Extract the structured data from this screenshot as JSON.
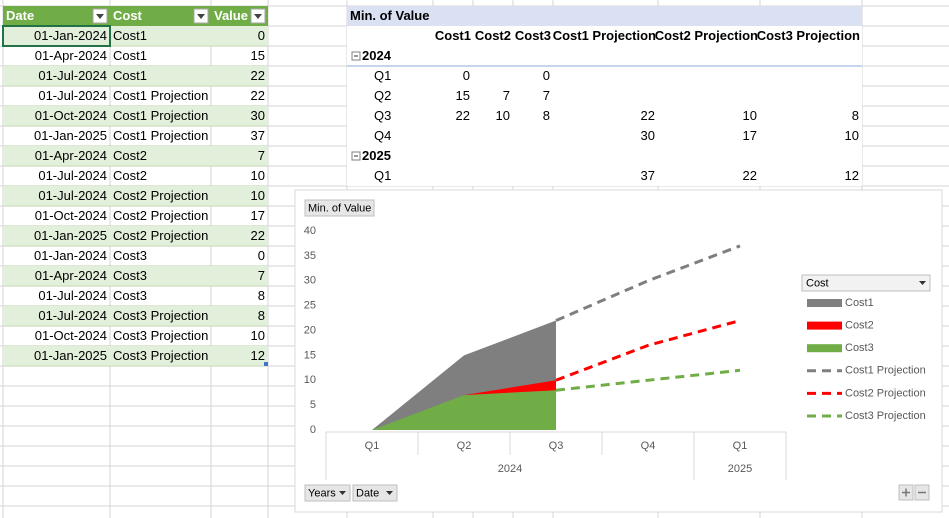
{
  "table": {
    "header": [
      "Date",
      "Cost",
      "Value"
    ],
    "rows": [
      [
        "01-Jan-2024",
        "Cost1",
        0
      ],
      [
        "01-Apr-2024",
        "Cost1",
        15
      ],
      [
        "01-Jul-2024",
        "Cost1",
        22
      ],
      [
        "01-Jul-2024",
        "Cost1 Projection",
        22
      ],
      [
        "01-Oct-2024",
        "Cost1 Projection",
        30
      ],
      [
        "01-Jan-2025",
        "Cost1 Projection",
        37
      ],
      [
        "01-Apr-2024",
        "Cost2",
        7
      ],
      [
        "01-Jul-2024",
        "Cost2",
        10
      ],
      [
        "01-Jul-2024",
        "Cost2 Projection",
        10
      ],
      [
        "01-Oct-2024",
        "Cost2 Projection",
        17
      ],
      [
        "01-Jan-2025",
        "Cost2 Projection",
        22
      ],
      [
        "01-Jan-2024",
        "Cost3",
        0
      ],
      [
        "01-Apr-2024",
        "Cost3",
        7
      ],
      [
        "01-Jul-2024",
        "Cost3",
        8
      ],
      [
        "01-Jul-2024",
        "Cost3 Projection",
        8
      ],
      [
        "01-Oct-2024",
        "Cost3 Projection",
        10
      ],
      [
        "01-Jan-2025",
        "Cost3 Projection",
        12
      ]
    ]
  },
  "pivot": {
    "title": "Min. of Value",
    "columns": [
      "Cost1",
      "Cost2",
      "Cost3",
      "Cost1 Projection",
      "Cost2 Projection",
      "Cost3 Projection"
    ],
    "groups": [
      {
        "year": "2024",
        "rows": [
          {
            "label": "Q1",
            "values": [
              0,
              null,
              0,
              null,
              null,
              null
            ]
          },
          {
            "label": "Q2",
            "values": [
              15,
              7,
              7,
              null,
              null,
              null
            ]
          },
          {
            "label": "Q3",
            "values": [
              22,
              10,
              8,
              22,
              10,
              8
            ]
          },
          {
            "label": "Q4",
            "values": [
              null,
              null,
              null,
              30,
              17,
              10
            ]
          }
        ]
      },
      {
        "year": "2025",
        "rows": [
          {
            "label": "Q1",
            "values": [
              null,
              null,
              null,
              37,
              22,
              12
            ]
          }
        ]
      }
    ]
  },
  "chart": {
    "type": "area-line",
    "value_field": "Min. of Value",
    "groups": [
      {
        "name": "2024",
        "categories": [
          "Q1",
          "Q2",
          "Q3",
          "Q4"
        ]
      },
      {
        "name": "2025",
        "categories": [
          "Q1"
        ]
      }
    ],
    "ylim": [
      0,
      40
    ],
    "yticks": [
      0,
      5,
      10,
      15,
      20,
      25,
      30,
      35,
      40
    ],
    "grid": false,
    "legend_title": "Cost",
    "legend": "right",
    "series": [
      {
        "name": "Cost1",
        "style": "area",
        "color": "#7f7f7f",
        "values": [
          0,
          15,
          22,
          null,
          null
        ]
      },
      {
        "name": "Cost2",
        "style": "area",
        "color": "#ff0000",
        "values": [
          null,
          7,
          10,
          null,
          null
        ]
      },
      {
        "name": "Cost3",
        "style": "area",
        "color": "#70ad47",
        "values": [
          0,
          7,
          8,
          null,
          null
        ]
      },
      {
        "name": "Cost1 Projection",
        "style": "dashed",
        "color": "#7f7f7f",
        "values": [
          null,
          null,
          22,
          30,
          37
        ]
      },
      {
        "name": "Cost2 Projection",
        "style": "dashed",
        "color": "#ff0000",
        "values": [
          null,
          null,
          10,
          17,
          22
        ]
      },
      {
        "name": "Cost3 Projection",
        "style": "dashed",
        "color": "#70ad47",
        "values": [
          null,
          null,
          8,
          10,
          12
        ]
      }
    ],
    "field_buttons": [
      "Years",
      "Date"
    ]
  }
}
